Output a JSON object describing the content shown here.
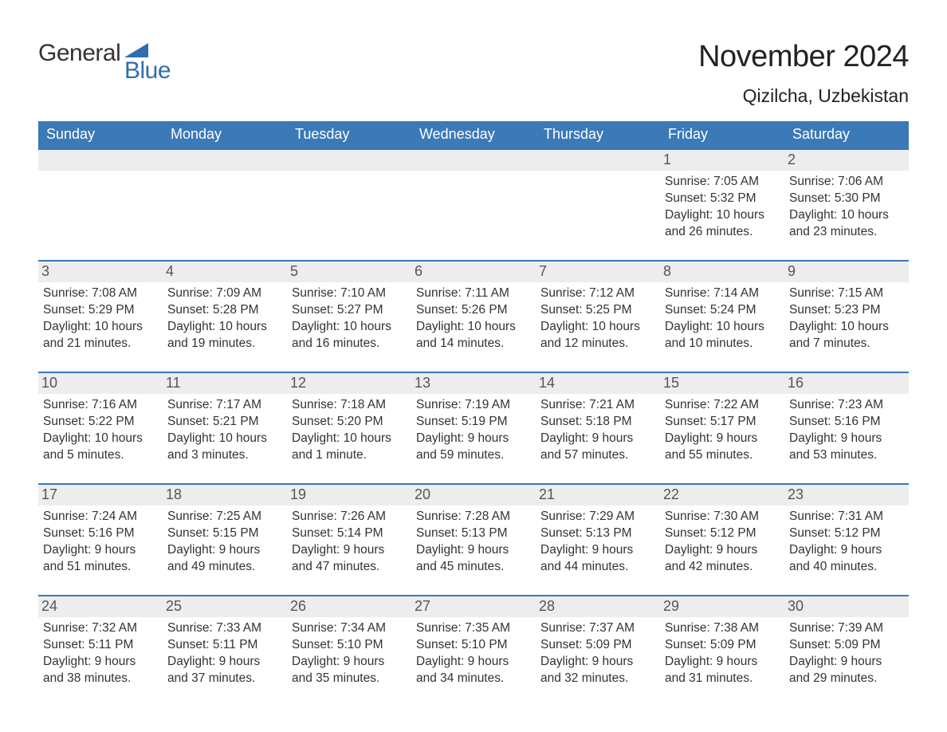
{
  "logo": {
    "text1": "General",
    "text2": "Blue",
    "accent_color": "#2f6fb0",
    "shape_color": "#2f6fb0"
  },
  "title": "November 2024",
  "location": "Qizilcha, Uzbekistan",
  "colors": {
    "header_bg": "#3b79b7",
    "header_text": "#ffffff",
    "daynum_bg": "#ededed",
    "daynum_text": "#555555",
    "body_text": "#333333",
    "rule": "#3b79b7"
  },
  "days_of_week": [
    "Sunday",
    "Monday",
    "Tuesday",
    "Wednesday",
    "Thursday",
    "Friday",
    "Saturday"
  ],
  "weeks": [
    [
      {
        "n": "",
        "sunrise": "",
        "sunset": "",
        "daylight": ""
      },
      {
        "n": "",
        "sunrise": "",
        "sunset": "",
        "daylight": ""
      },
      {
        "n": "",
        "sunrise": "",
        "sunset": "",
        "daylight": ""
      },
      {
        "n": "",
        "sunrise": "",
        "sunset": "",
        "daylight": ""
      },
      {
        "n": "",
        "sunrise": "",
        "sunset": "",
        "daylight": ""
      },
      {
        "n": "1",
        "sunrise": "Sunrise: 7:05 AM",
        "sunset": "Sunset: 5:32 PM",
        "daylight": "Daylight: 10 hours and 26 minutes."
      },
      {
        "n": "2",
        "sunrise": "Sunrise: 7:06 AM",
        "sunset": "Sunset: 5:30 PM",
        "daylight": "Daylight: 10 hours and 23 minutes."
      }
    ],
    [
      {
        "n": "3",
        "sunrise": "Sunrise: 7:08 AM",
        "sunset": "Sunset: 5:29 PM",
        "daylight": "Daylight: 10 hours and 21 minutes."
      },
      {
        "n": "4",
        "sunrise": "Sunrise: 7:09 AM",
        "sunset": "Sunset: 5:28 PM",
        "daylight": "Daylight: 10 hours and 19 minutes."
      },
      {
        "n": "5",
        "sunrise": "Sunrise: 7:10 AM",
        "sunset": "Sunset: 5:27 PM",
        "daylight": "Daylight: 10 hours and 16 minutes."
      },
      {
        "n": "6",
        "sunrise": "Sunrise: 7:11 AM",
        "sunset": "Sunset: 5:26 PM",
        "daylight": "Daylight: 10 hours and 14 minutes."
      },
      {
        "n": "7",
        "sunrise": "Sunrise: 7:12 AM",
        "sunset": "Sunset: 5:25 PM",
        "daylight": "Daylight: 10 hours and 12 minutes."
      },
      {
        "n": "8",
        "sunrise": "Sunrise: 7:14 AM",
        "sunset": "Sunset: 5:24 PM",
        "daylight": "Daylight: 10 hours and 10 minutes."
      },
      {
        "n": "9",
        "sunrise": "Sunrise: 7:15 AM",
        "sunset": "Sunset: 5:23 PM",
        "daylight": "Daylight: 10 hours and 7 minutes."
      }
    ],
    [
      {
        "n": "10",
        "sunrise": "Sunrise: 7:16 AM",
        "sunset": "Sunset: 5:22 PM",
        "daylight": "Daylight: 10 hours and 5 minutes."
      },
      {
        "n": "11",
        "sunrise": "Sunrise: 7:17 AM",
        "sunset": "Sunset: 5:21 PM",
        "daylight": "Daylight: 10 hours and 3 minutes."
      },
      {
        "n": "12",
        "sunrise": "Sunrise: 7:18 AM",
        "sunset": "Sunset: 5:20 PM",
        "daylight": "Daylight: 10 hours and 1 minute."
      },
      {
        "n": "13",
        "sunrise": "Sunrise: 7:19 AM",
        "sunset": "Sunset: 5:19 PM",
        "daylight": "Daylight: 9 hours and 59 minutes."
      },
      {
        "n": "14",
        "sunrise": "Sunrise: 7:21 AM",
        "sunset": "Sunset: 5:18 PM",
        "daylight": "Daylight: 9 hours and 57 minutes."
      },
      {
        "n": "15",
        "sunrise": "Sunrise: 7:22 AM",
        "sunset": "Sunset: 5:17 PM",
        "daylight": "Daylight: 9 hours and 55 minutes."
      },
      {
        "n": "16",
        "sunrise": "Sunrise: 7:23 AM",
        "sunset": "Sunset: 5:16 PM",
        "daylight": "Daylight: 9 hours and 53 minutes."
      }
    ],
    [
      {
        "n": "17",
        "sunrise": "Sunrise: 7:24 AM",
        "sunset": "Sunset: 5:16 PM",
        "daylight": "Daylight: 9 hours and 51 minutes."
      },
      {
        "n": "18",
        "sunrise": "Sunrise: 7:25 AM",
        "sunset": "Sunset: 5:15 PM",
        "daylight": "Daylight: 9 hours and 49 minutes."
      },
      {
        "n": "19",
        "sunrise": "Sunrise: 7:26 AM",
        "sunset": "Sunset: 5:14 PM",
        "daylight": "Daylight: 9 hours and 47 minutes."
      },
      {
        "n": "20",
        "sunrise": "Sunrise: 7:28 AM",
        "sunset": "Sunset: 5:13 PM",
        "daylight": "Daylight: 9 hours and 45 minutes."
      },
      {
        "n": "21",
        "sunrise": "Sunrise: 7:29 AM",
        "sunset": "Sunset: 5:13 PM",
        "daylight": "Daylight: 9 hours and 44 minutes."
      },
      {
        "n": "22",
        "sunrise": "Sunrise: 7:30 AM",
        "sunset": "Sunset: 5:12 PM",
        "daylight": "Daylight: 9 hours and 42 minutes."
      },
      {
        "n": "23",
        "sunrise": "Sunrise: 7:31 AM",
        "sunset": "Sunset: 5:12 PM",
        "daylight": "Daylight: 9 hours and 40 minutes."
      }
    ],
    [
      {
        "n": "24",
        "sunrise": "Sunrise: 7:32 AM",
        "sunset": "Sunset: 5:11 PM",
        "daylight": "Daylight: 9 hours and 38 minutes."
      },
      {
        "n": "25",
        "sunrise": "Sunrise: 7:33 AM",
        "sunset": "Sunset: 5:11 PM",
        "daylight": "Daylight: 9 hours and 37 minutes."
      },
      {
        "n": "26",
        "sunrise": "Sunrise: 7:34 AM",
        "sunset": "Sunset: 5:10 PM",
        "daylight": "Daylight: 9 hours and 35 minutes."
      },
      {
        "n": "27",
        "sunrise": "Sunrise: 7:35 AM",
        "sunset": "Sunset: 5:10 PM",
        "daylight": "Daylight: 9 hours and 34 minutes."
      },
      {
        "n": "28",
        "sunrise": "Sunrise: 7:37 AM",
        "sunset": "Sunset: 5:09 PM",
        "daylight": "Daylight: 9 hours and 32 minutes."
      },
      {
        "n": "29",
        "sunrise": "Sunrise: 7:38 AM",
        "sunset": "Sunset: 5:09 PM",
        "daylight": "Daylight: 9 hours and 31 minutes."
      },
      {
        "n": "30",
        "sunrise": "Sunrise: 7:39 AM",
        "sunset": "Sunset: 5:09 PM",
        "daylight": "Daylight: 9 hours and 29 minutes."
      }
    ]
  ]
}
